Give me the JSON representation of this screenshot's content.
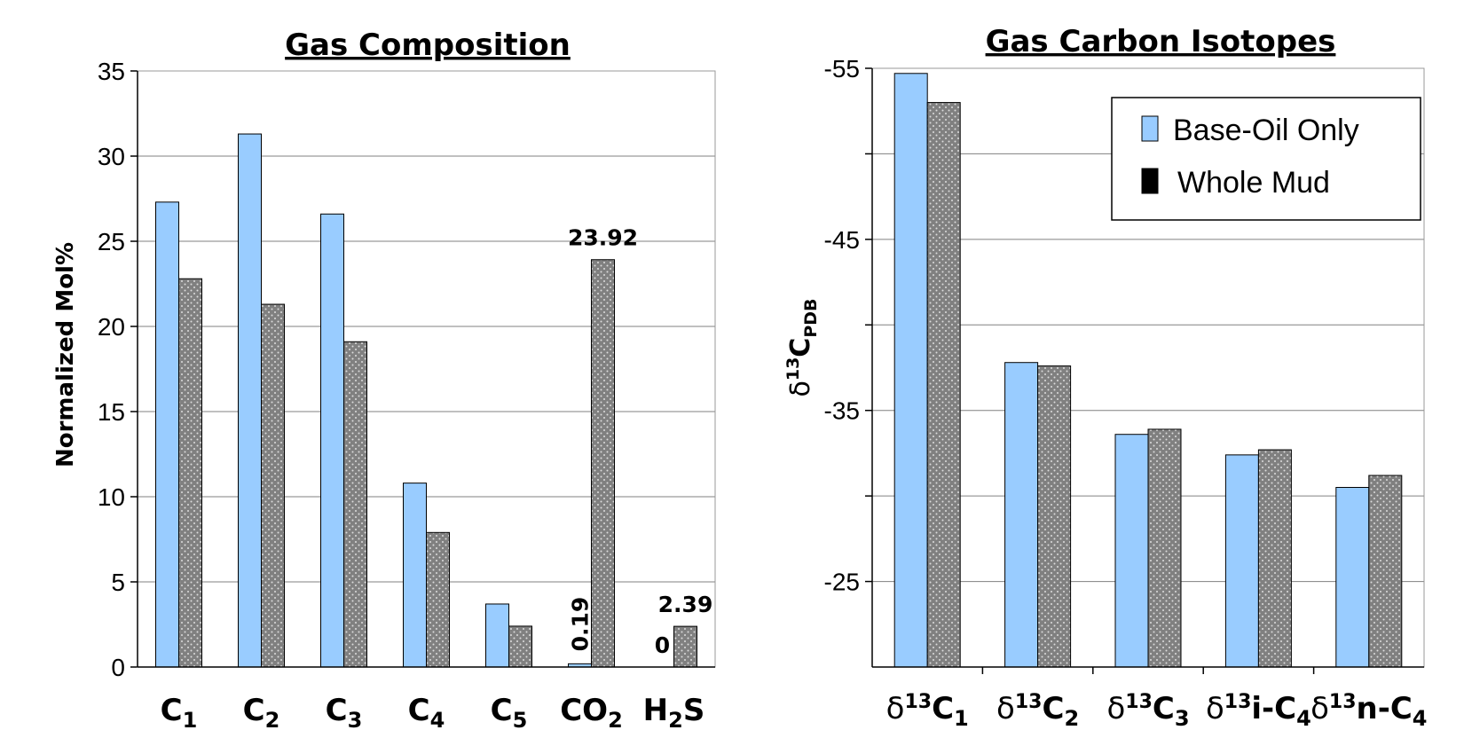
{
  "chart_data": [
    {
      "type": "bar",
      "title": "Gas Composition",
      "ylabel": "Normalized Mol%",
      "ylim": [
        0,
        35
      ],
      "yticks": [
        0,
        5,
        10,
        15,
        20,
        25,
        30,
        35
      ],
      "grid": true,
      "categories": [
        {
          "base": "C",
          "sub": "1"
        },
        {
          "base": "C",
          "sub": "2"
        },
        {
          "base": "C",
          "sub": "3"
        },
        {
          "base": "C",
          "sub": "4"
        },
        {
          "base": "C",
          "sub": "5"
        },
        {
          "base": "CO",
          "sub": "2"
        },
        {
          "base": "H",
          "sub": "2",
          "tail": "S"
        }
      ],
      "series": [
        {
          "name": "Base-Oil Only",
          "color": "#99ccff",
          "pattern": "solid",
          "values": [
            27.3,
            31.3,
            26.6,
            10.8,
            3.7,
            0.19,
            0
          ]
        },
        {
          "name": "Whole Mud",
          "color": "#808080",
          "pattern": "dotted",
          "values": [
            22.8,
            21.3,
            19.1,
            7.9,
            2.4,
            23.92,
            2.39
          ]
        }
      ],
      "data_labels": [
        {
          "category": 5,
          "series": 1,
          "text": "23.92",
          "orient": "horizontal"
        },
        {
          "category": 5,
          "series": 0,
          "text": "0.19",
          "orient": "vertical"
        },
        {
          "category": 6,
          "series": 0,
          "text": "0",
          "orient": "horizontal"
        },
        {
          "category": 6,
          "series": 1,
          "text": "2.39",
          "orient": "horizontal"
        }
      ]
    },
    {
      "type": "bar",
      "title": "Gas Carbon Isotopes",
      "ylabel": {
        "prefix": "δ",
        "sup": "13",
        "main": "C",
        "sub": "PDB"
      },
      "ylim": [
        -20,
        -55
      ],
      "yticks": [
        -25,
        -35,
        -45,
        -55
      ],
      "gridlines": [
        -25,
        -30,
        -35,
        -40,
        -45,
        -50,
        -55
      ],
      "grid": true,
      "categories": [
        {
          "prefix": "δ",
          "sup": "13",
          "base": "C",
          "sub": "1"
        },
        {
          "prefix": "δ",
          "sup": "13",
          "base": "C",
          "sub": "2"
        },
        {
          "prefix": "δ",
          "sup": "13",
          "base": "C",
          "sub": "3"
        },
        {
          "prefix": "δ",
          "sup": "13",
          "base": "i-C",
          "sub": "4"
        },
        {
          "prefix": "δ",
          "sup": "13",
          "base": "n-C",
          "sub": "4"
        }
      ],
      "series": [
        {
          "name": "Base-Oil Only",
          "color": "#99ccff",
          "pattern": "solid",
          "values": [
            -54.7,
            -37.8,
            -33.6,
            -32.4,
            -30.5
          ]
        },
        {
          "name": "Whole Mud",
          "color": "#808080",
          "pattern": "dotted",
          "values": [
            -53.0,
            -37.6,
            -33.9,
            -32.7,
            -31.2
          ]
        }
      ],
      "legend": {
        "placement": "top-right",
        "entries": [
          {
            "label": "Base-Oil Only",
            "color": "#99ccff"
          },
          {
            "label": "Whole Mud",
            "color": "#000000"
          }
        ]
      }
    }
  ]
}
